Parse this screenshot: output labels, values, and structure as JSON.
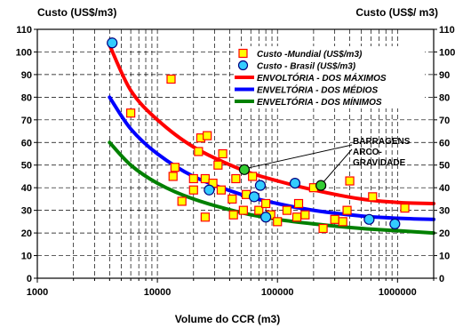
{
  "chart_data": {
    "type": "scatter",
    "xscale": "log",
    "xlim": [
      1000,
      2000000
    ],
    "ylim": [
      0,
      110
    ],
    "yticks": [
      0,
      10,
      20,
      30,
      40,
      50,
      60,
      70,
      80,
      90,
      100,
      110
    ],
    "xticks": [
      {
        "value": 1000,
        "label": "1000"
      },
      {
        "value": 10000,
        "label": "10000"
      },
      {
        "value": 100000,
        "label": "100000"
      },
      {
        "value": 1000000,
        "label": "1000000"
      }
    ],
    "ylabel_left": "Custo (US$/m3)",
    "ylabel_right": "Custo (US$/ m3)",
    "xlabel": "Volume do CCR (m3)",
    "grid": true,
    "legend_position": "top-right",
    "colors": {
      "mundial_fill": "#ffff00",
      "mundial_edge": "#ff0000",
      "brasil_fill": "#33ccff",
      "brasil_edge": "#000080",
      "max": "#ff0000",
      "med": "#0000ff",
      "min": "#008000",
      "highlight": "#33cc33",
      "grid": "#000000"
    },
    "series": [
      {
        "name": "Custo -Mundial (US$/m3)",
        "marker": "square",
        "points": [
          [
            6000,
            73
          ],
          [
            13000,
            88
          ],
          [
            13500,
            45
          ],
          [
            14000,
            49
          ],
          [
            16000,
            34
          ],
          [
            20000,
            39
          ],
          [
            20000,
            44
          ],
          [
            22000,
            56
          ],
          [
            23000,
            62
          ],
          [
            25000,
            27
          ],
          [
            25000,
            44
          ],
          [
            26000,
            63
          ],
          [
            29000,
            42
          ],
          [
            32000,
            50
          ],
          [
            34000,
            39
          ],
          [
            35000,
            55
          ],
          [
            42000,
            35
          ],
          [
            43000,
            28
          ],
          [
            45000,
            44
          ],
          [
            52000,
            30
          ],
          [
            55000,
            37
          ],
          [
            62000,
            45
          ],
          [
            70000,
            30
          ],
          [
            80000,
            33
          ],
          [
            88000,
            28
          ],
          [
            100000,
            25
          ],
          [
            120000,
            30
          ],
          [
            145000,
            27
          ],
          [
            150000,
            33
          ],
          [
            170000,
            28
          ],
          [
            200000,
            40
          ],
          [
            240000,
            22
          ],
          [
            300000,
            26
          ],
          [
            350000,
            25
          ],
          [
            380000,
            30
          ],
          [
            400000,
            43
          ],
          [
            620000,
            36
          ],
          [
            1150000,
            31
          ]
        ]
      },
      {
        "name": "Custo - Brasil (US$/m3)",
        "marker": "circle",
        "points": [
          [
            4200,
            104
          ],
          [
            27000,
            39
          ],
          [
            64000,
            36
          ],
          [
            72000,
            41
          ],
          [
            80000,
            27
          ],
          [
            140000,
            42
          ],
          [
            580000,
            26
          ],
          [
            950000,
            24
          ]
        ]
      },
      {
        "name": "ENVOLTÓRIA - DOS MÁXIMOS",
        "type": "line",
        "points": [
          [
            4000,
            103
          ],
          [
            6000,
            83
          ],
          [
            10000,
            70
          ],
          [
            20000,
            58
          ],
          [
            50000,
            48
          ],
          [
            100000,
            43
          ],
          [
            200000,
            39
          ],
          [
            500000,
            35
          ],
          [
            1000000,
            33.5
          ],
          [
            2000000,
            33
          ]
        ]
      },
      {
        "name": "ENVELTÓRIA - DOS MÉDIOS",
        "type": "line",
        "points": [
          [
            4000,
            80
          ],
          [
            6000,
            66
          ],
          [
            10000,
            55
          ],
          [
            20000,
            45
          ],
          [
            50000,
            37
          ],
          [
            100000,
            33
          ],
          [
            200000,
            30
          ],
          [
            500000,
            27.5
          ],
          [
            1000000,
            26.5
          ],
          [
            2000000,
            26
          ]
        ]
      },
      {
        "name": "ENVELTÓRIA - DOS MÍNIMOS",
        "type": "line",
        "points": [
          [
            4000,
            60
          ],
          [
            6000,
            50
          ],
          [
            10000,
            42
          ],
          [
            20000,
            35
          ],
          [
            50000,
            29
          ],
          [
            100000,
            26
          ],
          [
            200000,
            24
          ],
          [
            500000,
            22
          ],
          [
            1000000,
            21
          ],
          [
            2000000,
            20
          ]
        ]
      }
    ],
    "highlighted_points": [
      [
        53000,
        48
      ],
      [
        230000,
        41
      ]
    ],
    "annotation": {
      "lines": [
        "BARRAGENS",
        "ARCO-",
        "GRAVIDADE"
      ]
    }
  }
}
